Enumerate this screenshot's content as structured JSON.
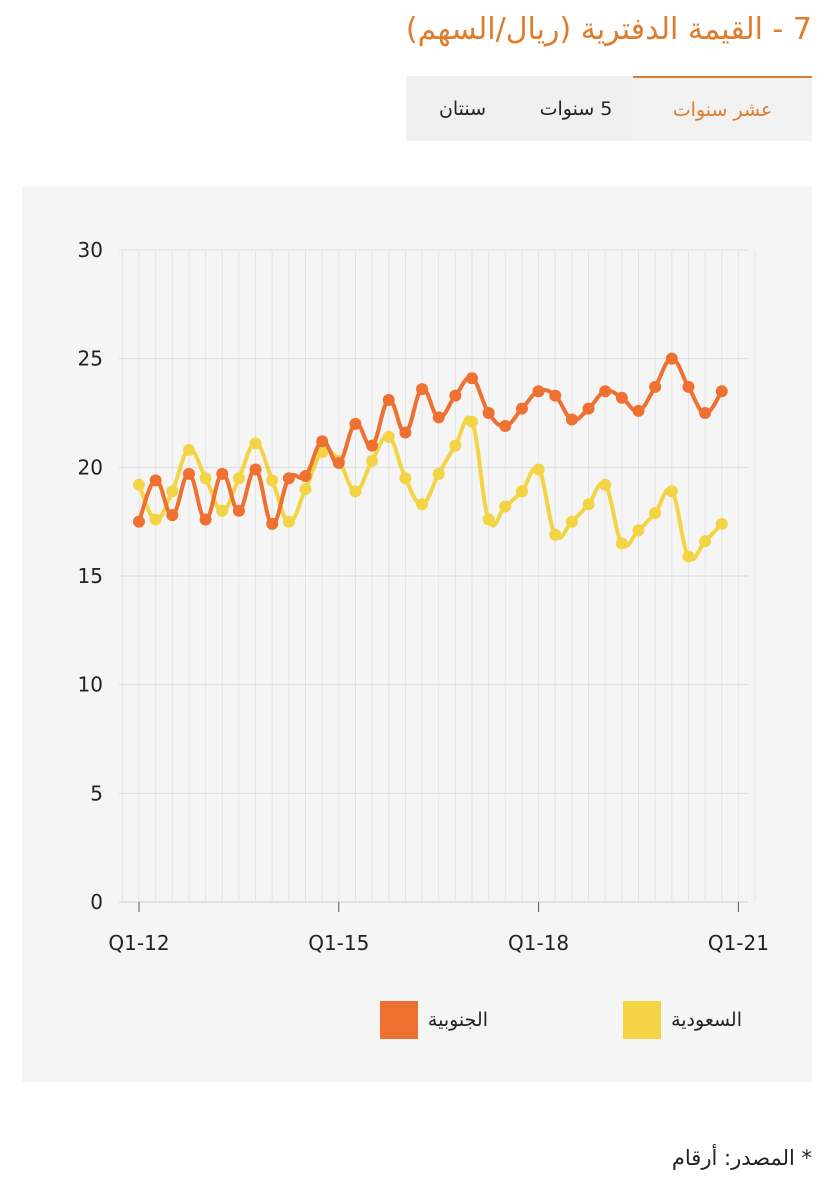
{
  "header": {
    "title": "7 - القيمة الدفترية (ريال/السهم)"
  },
  "tabs": [
    {
      "label": "سنتان",
      "active": false
    },
    {
      "label": "5 سنوات",
      "active": false
    },
    {
      "label": "عشر سنوات",
      "active": true
    }
  ],
  "footer": {
    "source": "* المصدر: أرقام"
  },
  "colors": {
    "accent": "#e07b2c",
    "southern": "#ee7131",
    "saudi": "#f3d444"
  },
  "chart_data": {
    "type": "line",
    "title": "",
    "xlabel": "",
    "ylabel": "",
    "ylim": [
      0,
      30
    ],
    "yticks": [
      "0",
      "5",
      "10",
      "15",
      "20",
      "25",
      "30"
    ],
    "xticks": [
      {
        "index": 0,
        "label": "Q1-12"
      },
      {
        "index": 12,
        "label": "Q1-15"
      },
      {
        "index": 24,
        "label": "Q1-18"
      },
      {
        "index": 36,
        "label": "Q1-21"
      }
    ],
    "grid": true,
    "legend_position": "bottom",
    "series": [
      {
        "name": "الجنوبية",
        "color": "#ee7131",
        "values": [
          17.5,
          19.4,
          17.8,
          19.7,
          17.6,
          19.7,
          18.0,
          19.9,
          17.4,
          19.5,
          19.6,
          21.2,
          20.2,
          22.0,
          21.0,
          23.1,
          21.6,
          23.6,
          22.3,
          23.3,
          24.1,
          22.5,
          21.9,
          22.7,
          23.5,
          23.3,
          22.2,
          22.7,
          23.5,
          23.2,
          22.6,
          23.7,
          25.0,
          23.7,
          22.5,
          23.5
        ]
      },
      {
        "name": "السعودية",
        "color": "#f3d444",
        "values": [
          19.2,
          17.6,
          18.9,
          20.8,
          19.5,
          18.0,
          19.5,
          21.1,
          19.4,
          17.5,
          19.0,
          20.7,
          20.3,
          18.9,
          20.3,
          21.4,
          19.5,
          18.3,
          19.7,
          21.0,
          22.1,
          17.6,
          18.2,
          18.9,
          19.9,
          16.9,
          17.5,
          18.3,
          19.2,
          16.5,
          17.1,
          17.9,
          18.9,
          15.9,
          16.6,
          17.4
        ]
      }
    ]
  }
}
